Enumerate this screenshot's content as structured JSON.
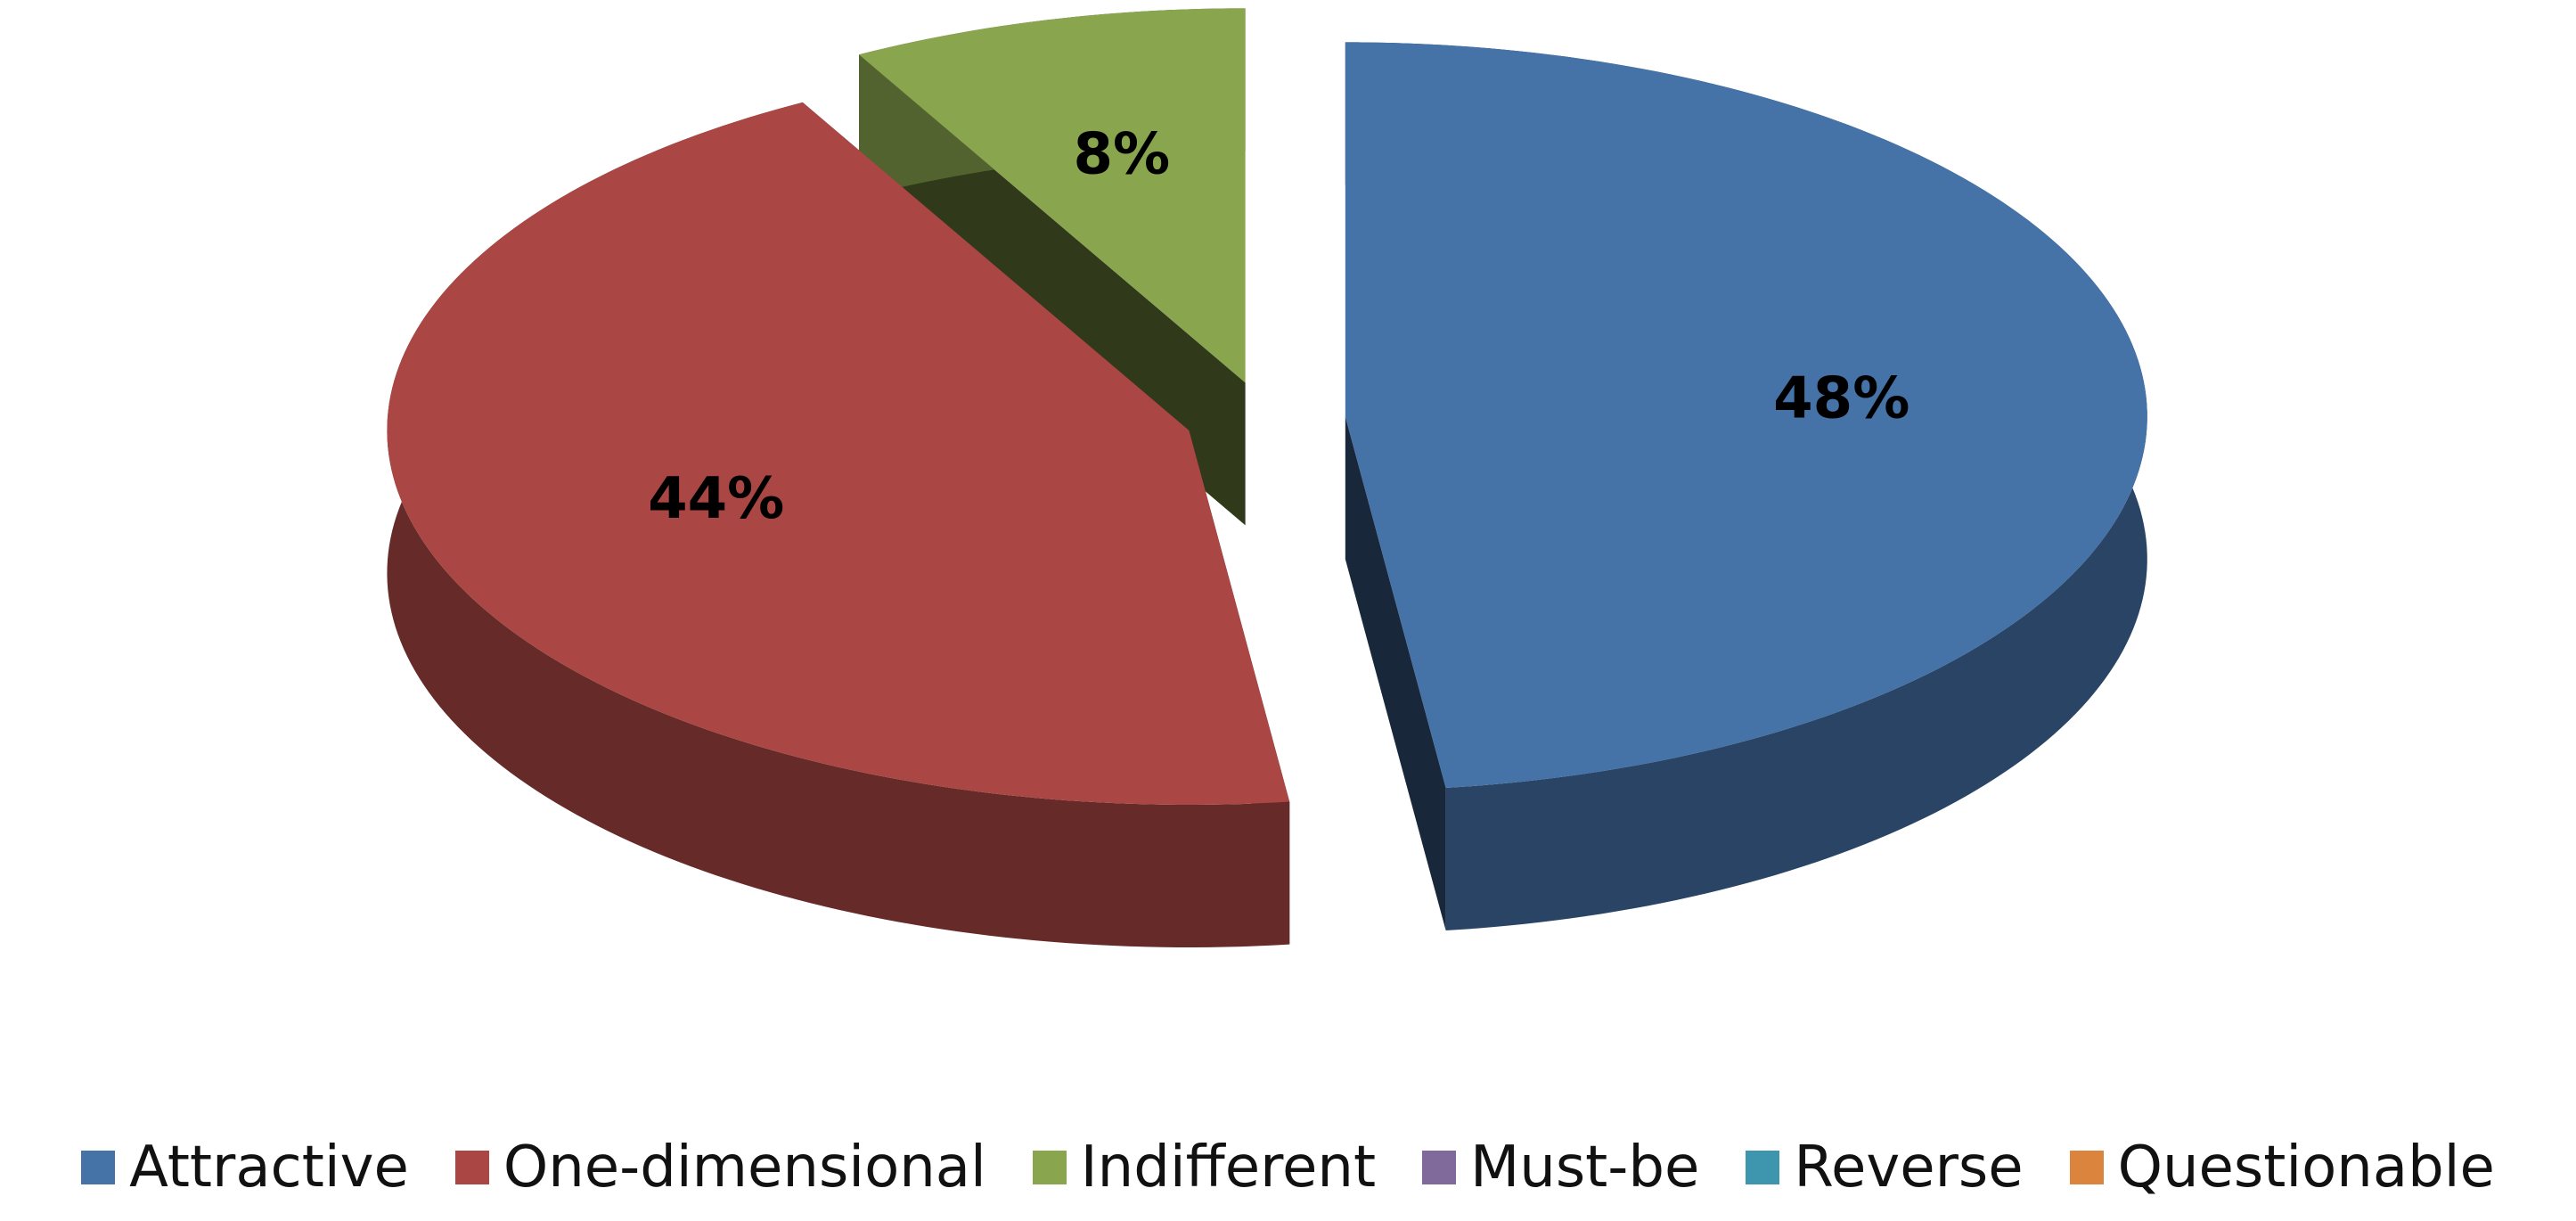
{
  "chart_data": {
    "type": "pie3d",
    "categories": [
      "Attractive",
      "One-dimensional",
      "Indifferent",
      "Must-be",
      "Reverse",
      "Questionable"
    ],
    "values": [
      48,
      44,
      8,
      0,
      0,
      0
    ],
    "value_labels": [
      "48%",
      "44%",
      "8%",
      null,
      null,
      null
    ],
    "colors": [
      "#4572a7",
      "#aa4643",
      "#89a54e",
      "#80699b",
      "#3d96ae",
      "#db843d"
    ],
    "legend": "bottom"
  }
}
